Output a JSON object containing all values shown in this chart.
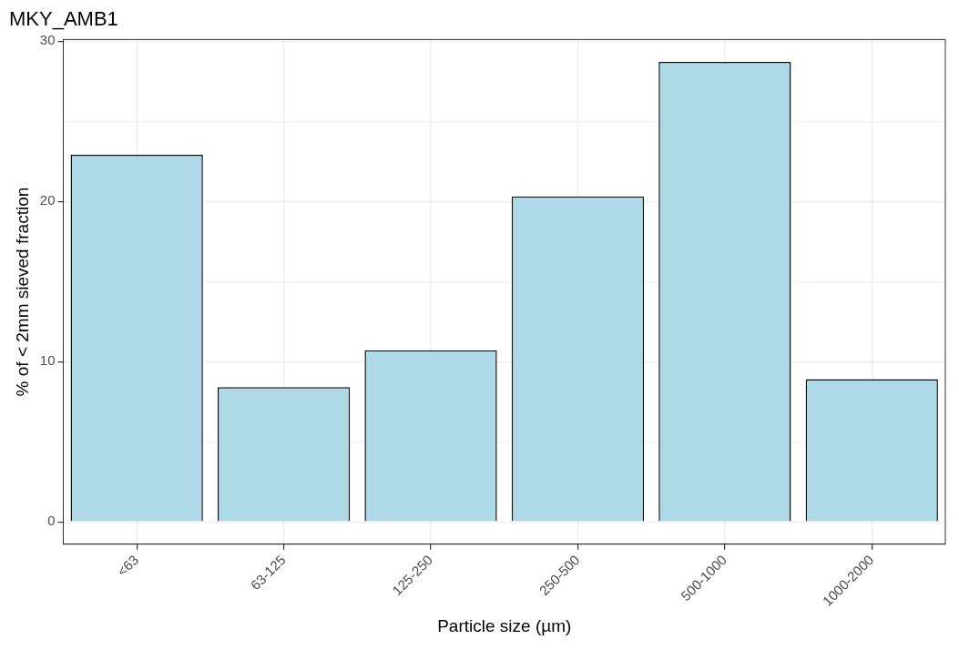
{
  "chart_data": {
    "type": "bar",
    "title": "MKY_AMB1",
    "xlabel": "Particle size (µm)",
    "ylabel": "% of < 2mm sieved fraction",
    "categories": [
      "<63",
      "63-125",
      "125-250",
      "250-500",
      "500-1000",
      "1000-2000"
    ],
    "values": [
      22.9,
      8.4,
      10.7,
      20.3,
      28.7,
      8.9
    ],
    "color": "#add8e6",
    "ylim": [
      -1.4,
      30.1
    ],
    "yticks": [
      0,
      {
        "value": 5,
        "label": null
      },
      10,
      {
        "value": 15,
        "label": null
      },
      20,
      {
        "value": 25,
        "label": null
      },
      30
    ],
    "grid": true
  }
}
